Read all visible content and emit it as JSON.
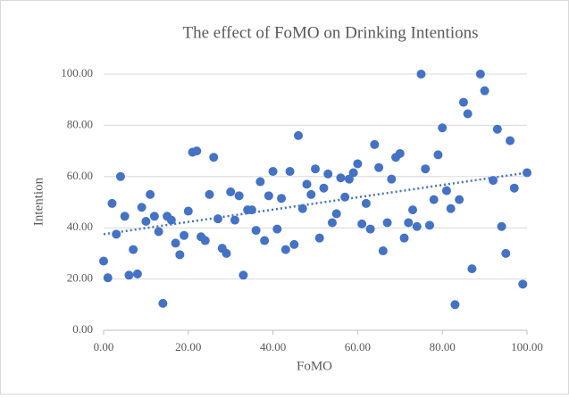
{
  "chart_data": {
    "type": "scatter",
    "title": "The effect of FoMO on Drinking Intentions",
    "x_label": "FoMO",
    "y_label": "Intention",
    "color": "#4472c4",
    "grid": true,
    "xlim": [
      0,
      100
    ],
    "ylim": [
      0,
      100
    ],
    "xticks": [
      {
        "value": 0,
        "label": "0.00"
      },
      {
        "value": 20,
        "label": "20.00"
      },
      {
        "value": 40,
        "label": "40.00"
      },
      {
        "value": 60,
        "label": "60.00"
      },
      {
        "value": 80,
        "label": "80.00"
      },
      {
        "value": 100,
        "label": "100.00"
      }
    ],
    "yticks": [
      {
        "value": 0,
        "label": "0.00"
      },
      {
        "value": 20,
        "label": "20.00"
      },
      {
        "value": 40,
        "label": "40.00"
      },
      {
        "value": 60,
        "label": "60.00"
      },
      {
        "value": 80,
        "label": "80.00"
      },
      {
        "value": 100,
        "label": "100.00"
      }
    ],
    "x": [
      0,
      1,
      2,
      3,
      4,
      5,
      6,
      7,
      8,
      9,
      10,
      11,
      12,
      13,
      14,
      15,
      16,
      17,
      18,
      19,
      20,
      21,
      22,
      23,
      24,
      25,
      26,
      27,
      28,
      29,
      30,
      31,
      32,
      33,
      34,
      35,
      36,
      37,
      38,
      39,
      40,
      41,
      42,
      43,
      44,
      45,
      46,
      47,
      48,
      49,
      50,
      51,
      52,
      53,
      54,
      55,
      56,
      57,
      58,
      59,
      60,
      61,
      62,
      63,
      64,
      65,
      66,
      67,
      68,
      69,
      70,
      71,
      72,
      73,
      74,
      75,
      76,
      77,
      78,
      79,
      80,
      81,
      82,
      83,
      84,
      85,
      86,
      87,
      89,
      90,
      92,
      93,
      94,
      95,
      96,
      97,
      99,
      100
    ],
    "values": [
      27,
      20.5,
      49.5,
      37.5,
      60,
      44.5,
      21.5,
      31.5,
      22,
      48,
      42.5,
      53,
      44.5,
      38.5,
      10.5,
      44.5,
      43,
      34,
      29.5,
      37,
      46.5,
      69.5,
      70,
      36.5,
      35,
      53,
      67.5,
      43.5,
      32,
      30,
      54,
      43,
      52.5,
      21.5,
      47,
      47,
      39,
      58,
      35,
      52.5,
      62,
      39.5,
      51.5,
      31.5,
      62,
      33.5,
      76,
      47.5,
      57,
      53,
      63,
      36,
      55.5,
      61,
      42,
      45.5,
      59.5,
      52,
      59,
      61.5,
      65,
      41.5,
      49.5,
      39.5,
      72.5,
      63.5,
      31,
      42,
      59,
      67.5,
      69,
      36,
      42,
      47,
      40.5,
      100,
      63,
      41,
      51,
      68.5,
      79,
      54.5,
      47.5,
      10,
      51,
      89,
      84.5,
      24,
      100,
      93.5,
      58.5,
      78.5,
      40.5,
      30,
      74,
      55.5,
      18,
      61.5
    ],
    "trendline": {
      "x": [
        0,
        100
      ],
      "values": [
        37.5,
        61.5
      ]
    }
  }
}
